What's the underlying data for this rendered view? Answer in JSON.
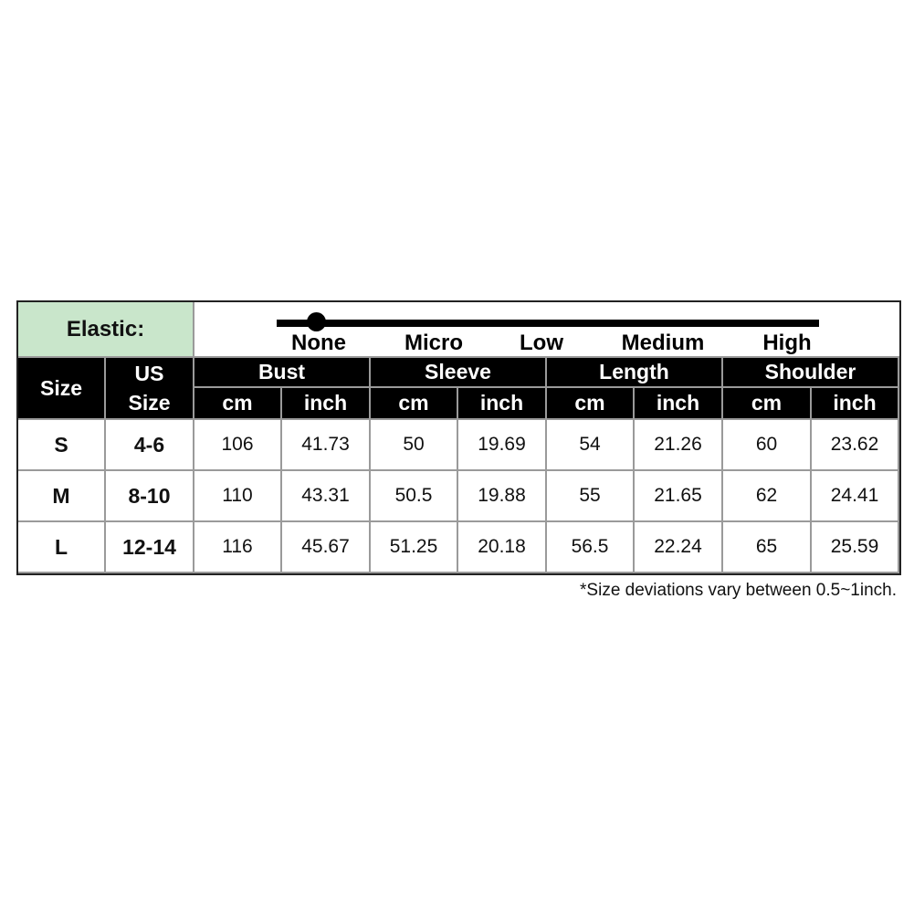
{
  "elastic": {
    "label": "Elastic:",
    "levels": [
      "None",
      "Micro",
      "Low",
      "Medium",
      "High"
    ],
    "selected": "None",
    "label_bg": "#c9e6cb"
  },
  "header": {
    "size": "Size",
    "us_size_1": "US",
    "us_size_2": "Size",
    "groups": [
      "Bust",
      "Sleeve",
      "Length",
      "Shoulder"
    ],
    "unit_cm": "cm",
    "unit_inch": "inch"
  },
  "rows": [
    {
      "size": "S",
      "us": "4-6",
      "values": [
        "106",
        "41.73",
        "50",
        "19.69",
        "54",
        "21.26",
        "60",
        "23.62"
      ]
    },
    {
      "size": "M",
      "us": "8-10",
      "values": [
        "110",
        "43.31",
        "50.5",
        "19.88",
        "55",
        "21.65",
        "62",
        "24.41"
      ]
    },
    {
      "size": "L",
      "us": "12-14",
      "values": [
        "116",
        "45.67",
        "51.25",
        "20.18",
        "56.5",
        "22.24",
        "65",
        "25.59"
      ]
    }
  ],
  "footnote": "*Size deviations vary between 0.5~1inch."
}
